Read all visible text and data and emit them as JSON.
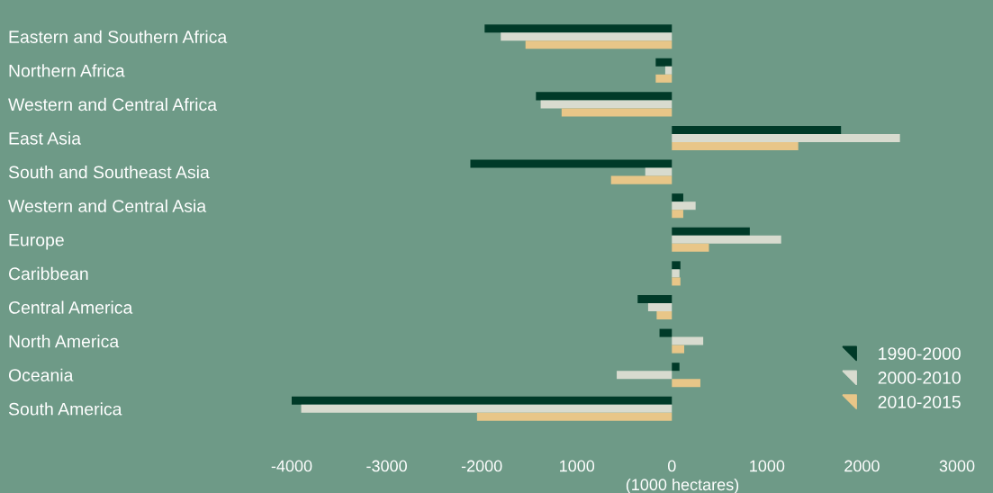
{
  "chart_data": {
    "type": "bar",
    "orientation": "horizontal",
    "categories": [
      "Eastern and Southern Africa",
      "Northern Africa",
      "Western and Central Africa",
      "East Asia",
      "South and Southeast Asia",
      "Western and Central Asia",
      "Europe",
      "Caribbean",
      "Central America",
      "North America",
      "Oceania",
      "South America"
    ],
    "series": [
      {
        "name": "1990-2000",
        "color": "#003a28",
        "values": [
          -1970,
          -170,
          -1430,
          1780,
          -2120,
          120,
          820,
          90,
          -360,
          -130,
          80,
          -4000
        ]
      },
      {
        "name": "2000-2010",
        "color": "#d8dbcf",
        "values": [
          -1800,
          -70,
          -1380,
          2400,
          -280,
          250,
          1150,
          80,
          -250,
          330,
          -580,
          -3900
        ]
      },
      {
        "name": "2010-2015",
        "color": "#e8c688",
        "values": [
          -1540,
          -170,
          -1160,
          1330,
          -640,
          120,
          390,
          90,
          -160,
          130,
          300,
          -2050
        ]
      }
    ],
    "xlabel": "(1000 hectares)",
    "xlim": [
      -4000,
      3000
    ],
    "xticks": [
      -4000,
      -3000,
      -2000,
      {
        "value": -1000,
        "label": "1000"
      },
      0,
      1000,
      2000,
      3000
    ],
    "grid": false,
    "legend": "bottom right"
  }
}
